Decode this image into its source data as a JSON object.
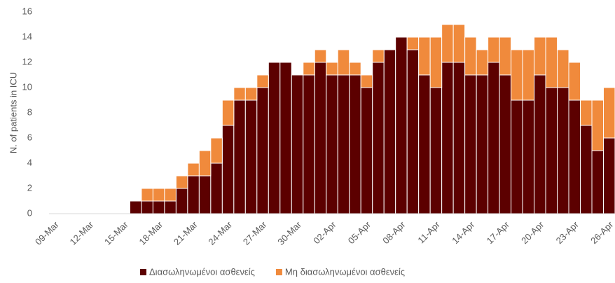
{
  "chart_data": {
    "type": "stacked_bar",
    "y_label": "N. of patients in ICU",
    "categories": [
      "09-Mar",
      null,
      null,
      "12-Mar",
      null,
      null,
      "15-Mar",
      null,
      null,
      "18-Mar",
      null,
      null,
      "21-Mar",
      null,
      null,
      "24-Mar",
      null,
      null,
      "27-Mar",
      null,
      null,
      "30-Mar",
      null,
      null,
      "02-Apr",
      null,
      null,
      "05-Apr",
      null,
      null,
      "08-Apr",
      null,
      null,
      "11-Apr",
      null,
      null,
      "14-Apr",
      null,
      null,
      "17-Apr",
      null,
      null,
      "20-Apr",
      null,
      null,
      "23-Apr",
      null,
      null,
      "26-Apr"
    ],
    "series": [
      {
        "name": "Διασωληνωμένοι ασθενείς",
        "color": "#5c0000",
        "values": [
          0,
          0,
          0,
          0,
          0,
          0,
          0,
          1,
          1,
          1,
          1,
          2,
          3,
          3,
          4,
          7,
          9,
          9,
          10,
          12,
          12,
          11,
          11,
          12,
          11,
          11,
          11,
          10,
          12,
          13,
          14,
          13,
          11,
          10,
          12,
          12,
          11,
          11,
          12,
          11,
          9,
          9,
          11,
          10,
          10,
          9,
          7,
          5,
          6
        ]
      },
      {
        "name": "Μη διασωληνωμένοι ασθενείς",
        "color": "#f08a3c",
        "values": [
          0,
          0,
          0,
          0,
          0,
          0,
          0,
          0,
          1,
          1,
          1,
          1,
          1,
          2,
          2,
          2,
          1,
          1,
          1,
          0,
          0,
          0,
          1,
          1,
          1,
          2,
          1,
          1,
          1,
          0,
          0,
          1,
          3,
          4,
          3,
          3,
          3,
          2,
          2,
          3,
          4,
          4,
          3,
          4,
          3,
          3,
          2,
          4,
          4
        ]
      }
    ],
    "ylim": [
      0,
      16
    ],
    "yticks": [
      0,
      2,
      4,
      6,
      8,
      10,
      12,
      14,
      16
    ],
    "grid": false,
    "legend": "bottom"
  }
}
